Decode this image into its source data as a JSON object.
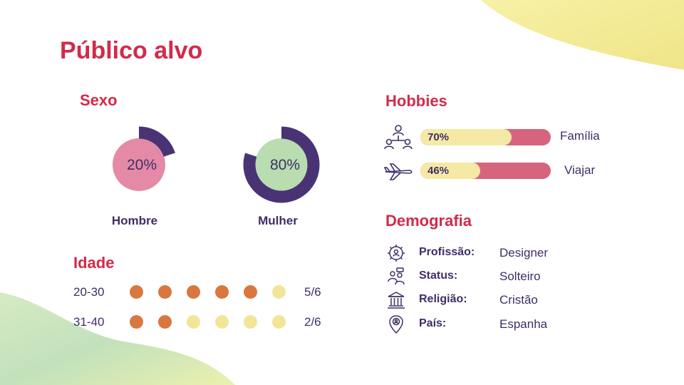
{
  "title": "Público alvo",
  "sexo": {
    "heading": "Sexo",
    "items": [
      {
        "label": "Hombre",
        "percent_text": "20%",
        "fraction": 0.2
      },
      {
        "label": "Mulher",
        "percent_text": "80%",
        "fraction": 0.8
      }
    ]
  },
  "idade": {
    "heading": "Idade",
    "rows": [
      {
        "range": "20-30",
        "count_text": "5/6",
        "filled": 5,
        "total": 6
      },
      {
        "range": "31-40",
        "count_text": "2/6",
        "filled": 2,
        "total": 6
      }
    ]
  },
  "hobbies": {
    "heading": "Hobbies",
    "items": [
      {
        "name": "Família",
        "percent_text": "70%",
        "fraction": 0.7,
        "icon": "people-network-icon"
      },
      {
        "name": "Viajar",
        "percent_text": "46%",
        "fraction": 0.46,
        "icon": "airplane-icon"
      }
    ]
  },
  "demografia": {
    "heading": "Demografia",
    "items": [
      {
        "key": "Profissão:",
        "value": "Designer",
        "icon": "gear-person-icon"
      },
      {
        "key": "Status:",
        "value": "Solteiro",
        "icon": "couple-icon"
      },
      {
        "key": "Religião:",
        "value": "Cristão",
        "icon": "temple-icon"
      },
      {
        "key": "País:",
        "value": "Espanha",
        "icon": "location-pin-icon"
      }
    ]
  },
  "colors": {
    "accent_red": "#d32a4a",
    "text_purple": "#3f2e67",
    "donut_purple": "#4a3374",
    "dot_orange": "#d9773e",
    "dot_yellow": "#f2e597",
    "bar_pink": "#d6647f",
    "bar_cream": "#f6e9a6"
  }
}
